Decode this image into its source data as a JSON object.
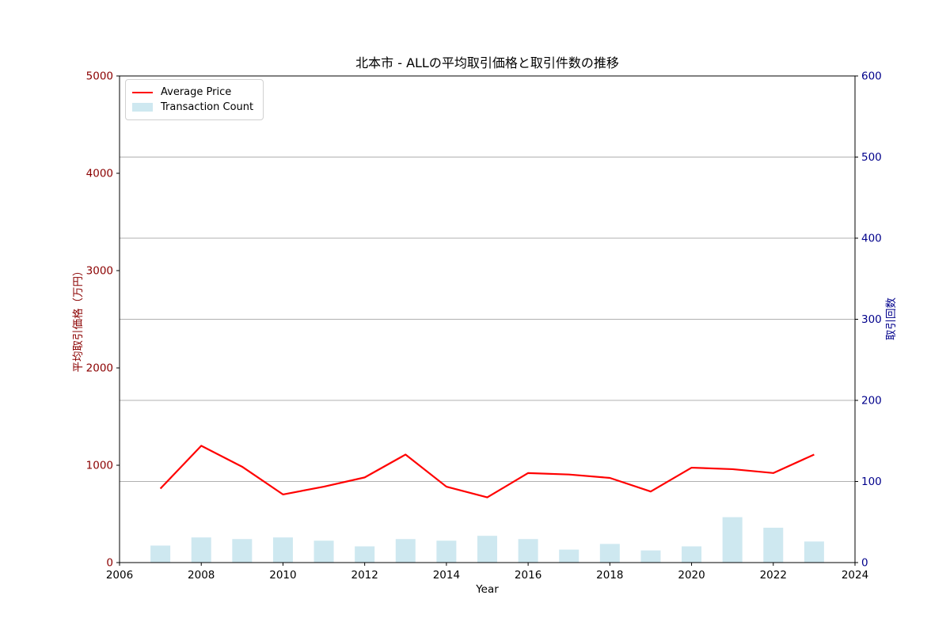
{
  "chart_data": {
    "type": "line+bar dual-axis combo",
    "title": "北本市 - ALLの平均取引価格と取引件数の推移",
    "xlabel": "Year",
    "x_axis": {
      "range": [
        2006,
        2024
      ],
      "ticks": [
        2006,
        2008,
        2010,
        2012,
        2014,
        2016,
        2018,
        2020,
        2022,
        2024
      ]
    },
    "left_axis": {
      "label": "平均取引価格（万円）",
      "color": "#8b0000",
      "range": [
        0,
        5000
      ],
      "ticks": [
        0,
        1000,
        2000,
        3000,
        4000,
        5000
      ]
    },
    "right_axis": {
      "label": "取引回数",
      "color": "#00008b",
      "range": [
        0,
        600
      ],
      "ticks": [
        0,
        100,
        200,
        300,
        400,
        500,
        600
      ]
    },
    "grid": {
      "horizontal": true,
      "vertical": false,
      "color": "#b0b0b0",
      "at_right_axis_ticks": [
        100,
        200,
        300,
        400,
        500
      ]
    },
    "legend": {
      "position": "upper-left",
      "items": [
        {
          "label": "Average Price",
          "swatch": "line",
          "color": "#ff0000"
        },
        {
          "label": "Transaction Count",
          "swatch": "patch",
          "color": "#cee8f0"
        }
      ]
    },
    "x": [
      2007,
      2008,
      2009,
      2010,
      2011,
      2012,
      2013,
      2014,
      2015,
      2016,
      2017,
      2018,
      2019,
      2020,
      2021,
      2022,
      2023
    ],
    "series": [
      {
        "name": "Average Price",
        "type": "line",
        "axis": "left",
        "color": "#ff0000",
        "values": [
          760,
          1200,
          985,
          700,
          780,
          875,
          1110,
          780,
          670,
          920,
          905,
          870,
          730,
          975,
          960,
          920,
          1110
        ]
      },
      {
        "name": "Transaction Count",
        "type": "bar",
        "axis": "right",
        "color": "#cee8f0",
        "values": [
          21,
          31,
          29,
          31,
          27,
          20,
          29,
          27,
          33,
          29,
          16,
          23,
          15,
          20,
          56,
          43,
          26
        ]
      }
    ]
  }
}
